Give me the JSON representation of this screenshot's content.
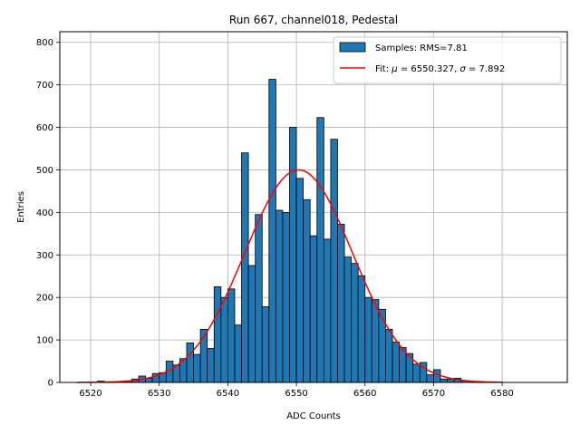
{
  "chart_data": {
    "type": "histogram",
    "title": "Run 667, channel018, Pedestal",
    "xlabel": "ADC Counts",
    "ylabel": "Entries",
    "xlim": [
      6515.5,
      6589.5
    ],
    "ylim": [
      0,
      825
    ],
    "xticks": [
      6520,
      6530,
      6540,
      6550,
      6560,
      6570,
      6580
    ],
    "yticks": [
      0,
      100,
      200,
      300,
      400,
      500,
      600,
      700,
      800
    ],
    "grid": true,
    "legend_position": "top-right",
    "colors": {
      "bar_fill": "#1f77b4",
      "bar_edge": "#000000",
      "fit_line": "#ff0000"
    },
    "series": [
      {
        "name": "Samples: RMS=7.81",
        "kind": "bars",
        "bin_width": 1,
        "bin_start": [
          6521,
          6522,
          6523,
          6524,
          6525,
          6526,
          6527,
          6528,
          6529,
          6530,
          6531,
          6532,
          6533,
          6534,
          6535,
          6536,
          6537,
          6538,
          6539,
          6540,
          6541,
          6542,
          6543,
          6544,
          6545,
          6546,
          6547,
          6548,
          6549,
          6550,
          6551,
          6552,
          6553,
          6554,
          6555,
          6556,
          6557,
          6558,
          6559,
          6560,
          6561,
          6562,
          6563,
          6564,
          6565,
          6566,
          6567,
          6568,
          6569,
          6570,
          6571,
          6572,
          6573,
          6574,
          6575,
          6576,
          6577,
          6578,
          6579
        ],
        "values": [
          3,
          1,
          1,
          1,
          2,
          8,
          15,
          10,
          21,
          23,
          50,
          41,
          56,
          93,
          66,
          125,
          80,
          225,
          200,
          220,
          135,
          540,
          275,
          395,
          178,
          713,
          405,
          400,
          600,
          480,
          430,
          345,
          623,
          337,
          572,
          372,
          295,
          280,
          251,
          200,
          195,
          172,
          125,
          95,
          82,
          68,
          43,
          47,
          18,
          30,
          8,
          8,
          10,
          4,
          2,
          1,
          1,
          1,
          1
        ]
      },
      {
        "name": "Fit: $\\mu$ = 6550.327, $\\sigma$ = 7.892",
        "legend_prefix": "Fit: ",
        "legend_mu": "μ",
        "legend_mid": " = 6550.327, ",
        "legend_sigma": "σ",
        "legend_suffix": " = 7.892",
        "kind": "line",
        "function": "gaussian",
        "mu": 6550.327,
        "sigma": 7.892,
        "amplitude": 500,
        "x_range": [
          6518,
          6580
        ]
      }
    ]
  }
}
